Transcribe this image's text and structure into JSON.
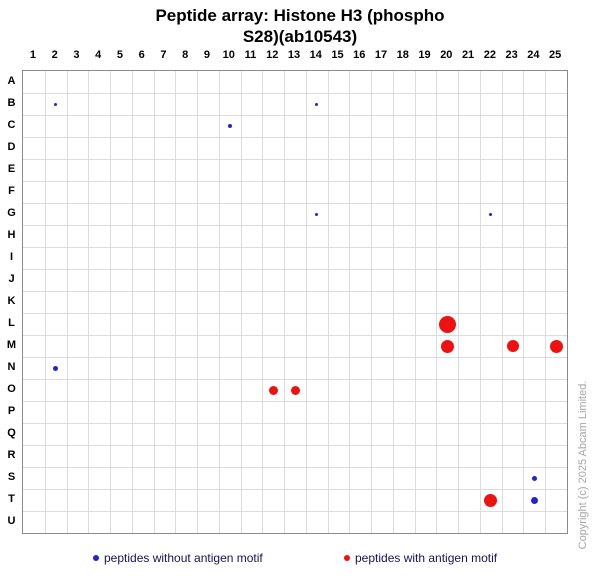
{
  "title": {
    "line1": "Peptide array:  Histone H3 (phospho",
    "line2": "S28)(ab10543)"
  },
  "copyright": "Copyright (c) 2025 Abcam Limited.",
  "legend": {
    "without": {
      "label": "peptides without antigen motif",
      "color": "#2424cc"
    },
    "with": {
      "label": "peptides with antigen motif",
      "color": "#ee1111"
    }
  },
  "chart_data": {
    "type": "scatter",
    "title": "Peptide array:  Histone H3 (phospho S28)(ab10543)",
    "columns": [
      "1",
      "2",
      "3",
      "4",
      "5",
      "6",
      "7",
      "8",
      "9",
      "10",
      "11",
      "12",
      "13",
      "14",
      "15",
      "16",
      "17",
      "18",
      "19",
      "20",
      "21",
      "22",
      "23",
      "24",
      "25"
    ],
    "rows": [
      "A",
      "B",
      "C",
      "D",
      "E",
      "F",
      "G",
      "H",
      "I",
      "J",
      "K",
      "L",
      "M",
      "N",
      "O",
      "P",
      "Q",
      "R",
      "S",
      "T",
      "U"
    ],
    "grid": true,
    "legend_position": "bottom",
    "point_color_meaning": {
      "blue": "peptides without antigen motif",
      "red": "peptides with antigen motif"
    },
    "points": [
      {
        "row": "B",
        "col": 2,
        "motif": false,
        "size": 3
      },
      {
        "row": "B",
        "col": 14,
        "motif": false,
        "size": 3
      },
      {
        "row": "C",
        "col": 10,
        "motif": false,
        "size": 4
      },
      {
        "row": "G",
        "col": 14,
        "motif": false,
        "size": 3
      },
      {
        "row": "G",
        "col": 22,
        "motif": false,
        "size": 3
      },
      {
        "row": "L",
        "col": 20,
        "motif": true,
        "size": 17
      },
      {
        "row": "M",
        "col": 20,
        "motif": true,
        "size": 13
      },
      {
        "row": "M",
        "col": 23,
        "motif": true,
        "size": 12
      },
      {
        "row": "M",
        "col": 25,
        "motif": true,
        "size": 13
      },
      {
        "row": "N",
        "col": 2,
        "motif": false,
        "size": 5
      },
      {
        "row": "O",
        "col": 12,
        "motif": true,
        "size": 9
      },
      {
        "row": "O",
        "col": 13,
        "motif": true,
        "size": 9
      },
      {
        "row": "S",
        "col": 24,
        "motif": false,
        "size": 5
      },
      {
        "row": "T",
        "col": 22,
        "motif": true,
        "size": 13
      },
      {
        "row": "T",
        "col": 24,
        "motif": false,
        "size": 7
      }
    ]
  }
}
